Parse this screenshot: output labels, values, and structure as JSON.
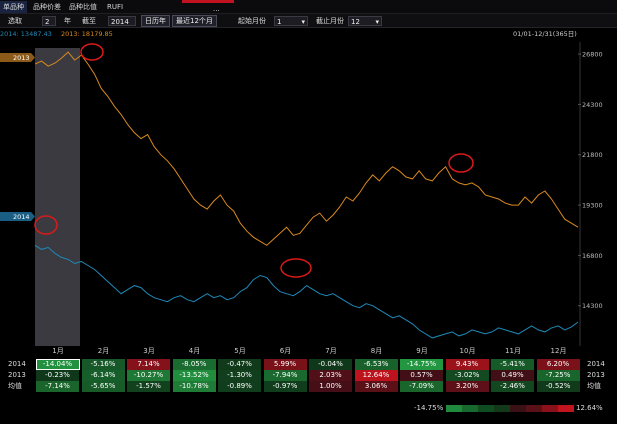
{
  "tabs": [
    {
      "label": "单品种",
      "active": true
    },
    {
      "label": "品种价差",
      "active": false
    },
    {
      "label": "品种比值",
      "active": false
    },
    {
      "label": "RUFI",
      "active": false
    }
  ],
  "window_button": "...",
  "toolbar": {
    "select_label": "选取",
    "years_value": "2",
    "year_unit": "年",
    "until_label": "截至",
    "until_value": "2014",
    "calendar_year_button": "日历年",
    "recent_12_button": "最近12个月",
    "start_month_label": "起始月份",
    "start_month_value": "1",
    "end_month_label": "截止月份",
    "end_month_value": "12"
  },
  "header": {
    "series_2014": "2014: 13487.43",
    "series_2013": "2013: 18179.85",
    "date_range": "01/01-12/31(365日)"
  },
  "colors": {
    "series_2013": "#d98a1e",
    "series_2014": "#1f89b8",
    "positive": "#c0141e",
    "negative": "#1f8a3b",
    "highlight_circle": "#d91a1a"
  },
  "chart_data": {
    "type": "line",
    "x_label_months": [
      "1月",
      "2月",
      "3月",
      "4月",
      "5月",
      "6月",
      "7月",
      "8月",
      "9月",
      "10月",
      "11月",
      "12月"
    ],
    "yticks": [
      26800,
      24300,
      21800,
      19300,
      16800,
      14300
    ],
    "ylim": [
      12300,
      27400
    ],
    "series": [
      {
        "name": "2013",
        "values": [
          26300,
          26450,
          26200,
          26350,
          26600,
          26900,
          26500,
          26750,
          26300,
          25800,
          25100,
          24700,
          24200,
          23800,
          23300,
          22900,
          22600,
          22800,
          22200,
          21800,
          21500,
          21100,
          20600,
          20100,
          19600,
          19300,
          19100,
          19500,
          19800,
          19300,
          19000,
          18400,
          18000,
          17700,
          17500,
          17300,
          17600,
          17900,
          18200,
          17800,
          17900,
          18300,
          18700,
          18900,
          18500,
          18800,
          19200,
          19700,
          19500,
          19900,
          20400,
          20800,
          20500,
          20900,
          21200,
          21000,
          20700,
          20600,
          21000,
          20600,
          20500,
          20900,
          21200,
          20600,
          20400,
          20300,
          20400,
          20200,
          19800,
          19700,
          19600,
          19400,
          19300,
          19300,
          19700,
          19400,
          19800,
          20000,
          19600,
          19100,
          18600,
          18400,
          18200
        ],
        "color": "#d98a1e"
      },
      {
        "name": "2014",
        "values": [
          17300,
          17100,
          17200,
          16900,
          16700,
          16600,
          16400,
          16500,
          16300,
          16100,
          15800,
          15500,
          15200,
          14900,
          15100,
          15300,
          15200,
          14900,
          14700,
          14600,
          14500,
          14700,
          14800,
          14600,
          14500,
          14700,
          14900,
          14700,
          14800,
          14600,
          14700,
          15000,
          15200,
          15600,
          15800,
          15700,
          15300,
          15000,
          14900,
          14800,
          15000,
          15300,
          15100,
          14900,
          14800,
          14900,
          14700,
          14500,
          14300,
          14200,
          14400,
          14300,
          14100,
          13900,
          13700,
          13800,
          13600,
          13400,
          13100,
          12900,
          12700,
          12800,
          12900,
          13000,
          12800,
          12900,
          13100,
          13000,
          12900,
          13000,
          13200,
          13100,
          13000,
          12900,
          13100,
          13300,
          13100,
          13000,
          13200,
          13300,
          13100,
          13250,
          13487
        ],
        "color": "#1f89b8"
      }
    ]
  },
  "series_tags": {
    "s2013": "2013",
    "s2014": "2014"
  },
  "month_headers": [
    "1月",
    "2月",
    "3月",
    "4月",
    "5月",
    "6月",
    "7月",
    "8月",
    "9月",
    "10月",
    "11月",
    "12月"
  ],
  "table_rows": [
    {
      "label": "2014",
      "values": [
        "-14.04%",
        "-5.16%",
        "7.14%",
        "-8.05%",
        "-0.47%",
        "5.99%",
        "-0.04%",
        "-6.53%",
        "-14.75%",
        "9.43%",
        "-5.41%",
        "6.20%"
      ]
    },
    {
      "label": "2013",
      "values": [
        "-0.23%",
        "-6.14%",
        "-10.27%",
        "-13.52%",
        "-1.30%",
        "-7.94%",
        "2.03%",
        "12.64%",
        "0.57%",
        "-3.02%",
        "0.49%",
        "-7.25%"
      ]
    },
    {
      "label": "均值",
      "values": [
        "-7.14%",
        "-5.65%",
        "-1.57%",
        "-10.78%",
        "-0.89%",
        "-0.97%",
        "1.00%",
        "3.06%",
        "-7.09%",
        "3.20%",
        "-2.46%",
        "-0.52%"
      ]
    }
  ],
  "legend": {
    "min": "-14.75%",
    "max": "12.64%"
  }
}
